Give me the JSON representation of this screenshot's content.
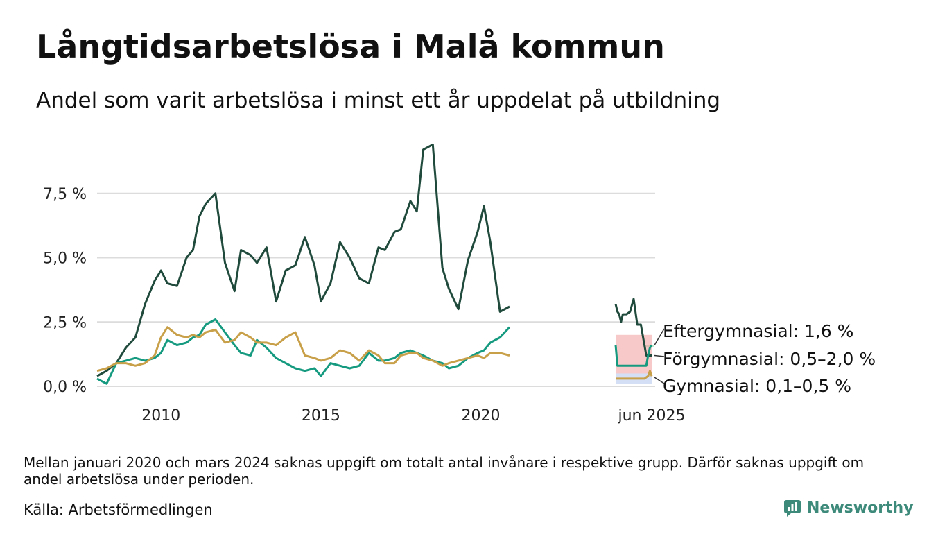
{
  "title": "Långtidsarbetslösa i Malå kommun",
  "subtitle": "Andel som varit arbetslösa i minst ett år uppdelat på utbildning",
  "note": "Mellan januari 2020 och mars 2024 saknas uppgift om totalt antal invånare i respektive grupp. Därför saknas uppgift om andel arbetslösa under perioden.",
  "source": "Källa: Arbetsförmedlingen",
  "brand": "Newsworthy",
  "chart_data": {
    "type": "line",
    "y_ticks": [
      0,
      2.5,
      5.0,
      7.5
    ],
    "y_tick_labels": [
      "0,0 %",
      "2,5 %",
      "5,0 %",
      "7,5 %"
    ],
    "x_tick_labels": [
      "2010",
      "2015",
      "2020",
      "jun 2025"
    ],
    "x_ticks": [
      2010,
      2015,
      2020
    ],
    "ylim": [
      0,
      9.8
    ],
    "grid": true,
    "colors": {
      "Förgymnasial": "#1f4a3c",
      "Eftergymnasial": "#159a80",
      "Gymnasial": "#c9a04a",
      "grid": "#dcdcdc",
      "range_eftergymnasial": "#8fd6a0",
      "range_forgymnasial": "#f2a5a5",
      "range_gymnasial": "#b7c8ef"
    },
    "series_period1": [
      {
        "name": "Förgymnasial",
        "x": [
          2008.0,
          2008.3,
          2008.6,
          2008.9,
          2009.2,
          2009.5,
          2009.8,
          2010.0,
          2010.2,
          2010.5,
          2010.8,
          2011.0,
          2011.2,
          2011.4,
          2011.7,
          2012.0,
          2012.3,
          2012.5,
          2012.8,
          2013.0,
          2013.3,
          2013.6,
          2013.9,
          2014.2,
          2014.5,
          2014.8,
          2015.0,
          2015.3,
          2015.6,
          2015.9,
          2016.2,
          2016.5,
          2016.8,
          2017.0,
          2017.3,
          2017.5,
          2017.8,
          2018.0,
          2018.2,
          2018.5,
          2018.8,
          2019.0,
          2019.3,
          2019.6,
          2019.9,
          2020.1,
          2020.3,
          2020.6,
          2020.9
        ],
        "values": [
          0.4,
          0.6,
          0.9,
          1.5,
          1.9,
          3.2,
          4.1,
          4.5,
          4.0,
          3.9,
          5.0,
          5.3,
          6.6,
          7.1,
          7.5,
          4.8,
          3.7,
          5.3,
          5.1,
          4.8,
          5.4,
          3.3,
          4.5,
          4.7,
          5.8,
          4.7,
          3.3,
          4.0,
          5.6,
          5.0,
          4.2,
          4.0,
          5.4,
          5.3,
          6.0,
          6.1,
          7.2,
          6.8,
          9.2,
          9.4,
          4.6,
          3.8,
          3.0,
          4.9,
          6.0,
          7.0,
          5.6,
          2.9,
          3.1
        ]
      },
      {
        "name": "Eftergymnasial",
        "x": [
          2008.0,
          2008.3,
          2008.6,
          2008.9,
          2009.2,
          2009.5,
          2009.8,
          2010.0,
          2010.2,
          2010.5,
          2010.8,
          2011.0,
          2011.2,
          2011.4,
          2011.7,
          2012.0,
          2012.3,
          2012.5,
          2012.8,
          2013.0,
          2013.3,
          2013.6,
          2013.9,
          2014.2,
          2014.5,
          2014.8,
          2015.0,
          2015.3,
          2015.6,
          2015.9,
          2016.2,
          2016.5,
          2016.8,
          2017.0,
          2017.3,
          2017.5,
          2017.8,
          2018.0,
          2018.2,
          2018.5,
          2018.8,
          2019.0,
          2019.3,
          2019.6,
          2019.9,
          2020.1,
          2020.3,
          2020.6,
          2020.9
        ],
        "values": [
          0.3,
          0.1,
          0.9,
          1.0,
          1.1,
          1.0,
          1.1,
          1.3,
          1.8,
          1.6,
          1.7,
          1.9,
          2.0,
          2.4,
          2.6,
          2.1,
          1.6,
          1.3,
          1.2,
          1.8,
          1.5,
          1.1,
          0.9,
          0.7,
          0.6,
          0.7,
          0.4,
          0.9,
          0.8,
          0.7,
          0.8,
          1.3,
          1.0,
          1.0,
          1.1,
          1.3,
          1.4,
          1.3,
          1.2,
          1.0,
          0.9,
          0.7,
          0.8,
          1.1,
          1.3,
          1.4,
          1.7,
          1.9,
          2.3
        ]
      },
      {
        "name": "Gymnasial",
        "x": [
          2008.0,
          2008.3,
          2008.6,
          2008.9,
          2009.2,
          2009.5,
          2009.8,
          2010.0,
          2010.2,
          2010.5,
          2010.8,
          2011.0,
          2011.2,
          2011.4,
          2011.7,
          2012.0,
          2012.3,
          2012.5,
          2012.8,
          2013.0,
          2013.3,
          2013.6,
          2013.9,
          2014.2,
          2014.5,
          2014.8,
          2015.0,
          2015.3,
          2015.6,
          2015.9,
          2016.2,
          2016.5,
          2016.8,
          2017.0,
          2017.3,
          2017.5,
          2017.8,
          2018.0,
          2018.2,
          2018.5,
          2018.8,
          2019.0,
          2019.3,
          2019.6,
          2019.9,
          2020.1,
          2020.3,
          2020.6,
          2020.9
        ],
        "values": [
          0.6,
          0.7,
          0.9,
          0.9,
          0.8,
          0.9,
          1.2,
          1.9,
          2.3,
          2.0,
          1.9,
          2.0,
          1.9,
          2.1,
          2.2,
          1.7,
          1.8,
          2.1,
          1.9,
          1.7,
          1.7,
          1.6,
          1.9,
          2.1,
          1.2,
          1.1,
          1.0,
          1.1,
          1.4,
          1.3,
          1.0,
          1.4,
          1.2,
          0.9,
          0.9,
          1.2,
          1.3,
          1.3,
          1.1,
          1.0,
          0.8,
          0.9,
          1.0,
          1.1,
          1.2,
          1.1,
          1.3,
          1.3,
          1.2
        ]
      }
    ],
    "series_period2": [
      {
        "name": "Förgymnasial",
        "x": [
          0,
          0.05,
          0.1,
          0.15,
          0.2,
          0.3,
          0.4,
          0.5,
          0.6,
          0.7,
          0.8,
          0.85,
          0.9,
          0.95,
          1.0
        ],
        "values": [
          3.2,
          2.9,
          2.8,
          2.5,
          2.8,
          2.8,
          2.9,
          3.4,
          2.4,
          2.4,
          1.6,
          1.2,
          1.2,
          1.2,
          1.2
        ]
      },
      {
        "name": "Eftergymnasial",
        "x": [
          0,
          0.05,
          0.1,
          0.3,
          0.5,
          0.7,
          0.85,
          0.9,
          0.95,
          1.0
        ],
        "values": [
          1.6,
          0.8,
          0.8,
          0.8,
          0.8,
          0.8,
          0.8,
          1.2,
          1.5,
          1.6
        ]
      },
      {
        "name": "Gymnasial",
        "x": [
          0,
          0.2,
          0.4,
          0.6,
          0.8,
          0.9,
          0.95,
          1.0
        ],
        "values": [
          0.3,
          0.3,
          0.3,
          0.3,
          0.3,
          0.4,
          0.6,
          0.4
        ]
      }
    ],
    "ranges": [
      {
        "name": "Eftergymnasial",
        "min": 1.6,
        "max": 1.6
      },
      {
        "name": "Förgymnasial",
        "min": 0.5,
        "max": 2.0
      },
      {
        "name": "Gymnasial",
        "min": 0.1,
        "max": 0.5
      }
    ],
    "end_labels": [
      "Eftergymnasial: 1,6 %",
      "Förgymnasial: 0,5–2,0 %",
      "Gymnasial: 0,1–0,5 %"
    ]
  }
}
